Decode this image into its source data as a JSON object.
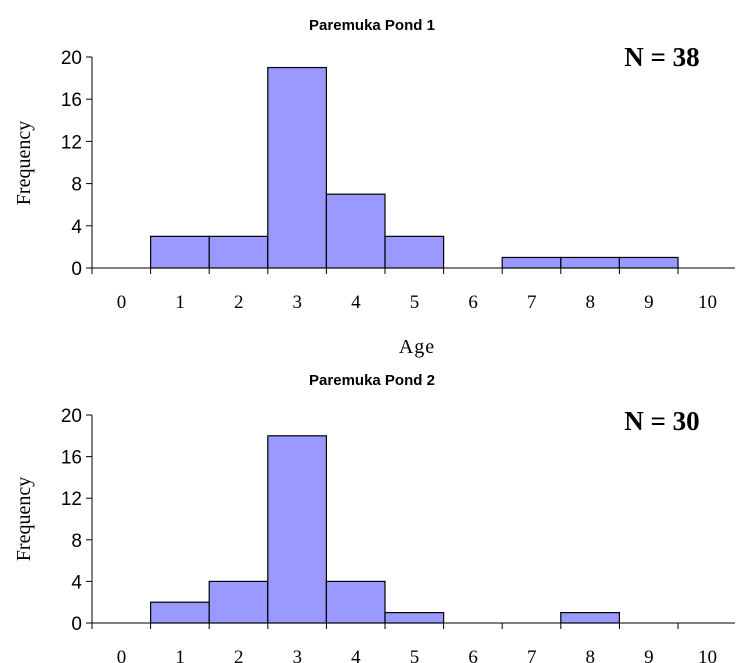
{
  "colors": {
    "bar_fill": "#9999ff",
    "bar_stroke": "#000000"
  },
  "chart_data": [
    {
      "type": "bar",
      "title": "Paremuka Pond 1",
      "annotation": "N = 38",
      "xlabel": "Age",
      "ylabel": "Frequency",
      "categories": [
        "0",
        "1",
        "2",
        "3",
        "4",
        "5",
        "6",
        "7",
        "8",
        "9",
        "10"
      ],
      "values": [
        0,
        3,
        3,
        19,
        7,
        3,
        0,
        1,
        1,
        1,
        0
      ],
      "yticks": [
        "0",
        "4",
        "8",
        "12",
        "16",
        "20"
      ],
      "ylim": [
        0,
        20
      ],
      "grid": false
    },
    {
      "type": "bar",
      "title": "Paremuka Pond 2",
      "annotation": "N = 30",
      "xlabel": "",
      "ylabel": "Frequency",
      "categories": [
        "0",
        "1",
        "2",
        "3",
        "4",
        "5",
        "6",
        "7",
        "8",
        "9",
        "10"
      ],
      "values": [
        0,
        2,
        4,
        18,
        4,
        1,
        0,
        0,
        1,
        0,
        0
      ],
      "yticks": [
        "0",
        "4",
        "8",
        "12",
        "16",
        "20"
      ],
      "ylim": [
        0,
        20
      ],
      "grid": false
    }
  ]
}
